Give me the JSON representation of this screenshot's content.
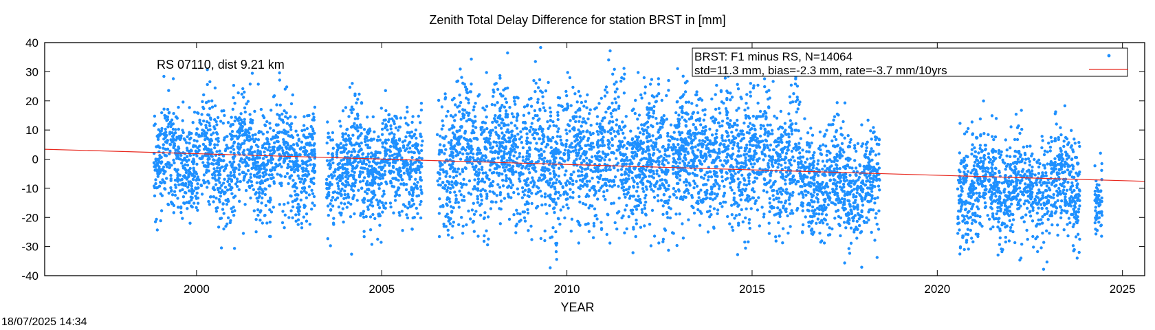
{
  "chart_data": {
    "type": "scatter",
    "title": "Zenith Total Delay Difference for station BRST in [mm]",
    "xlabel": "YEAR",
    "ylabel": "",
    "xlim": [
      1995.9,
      2025.6
    ],
    "ylim": [
      -40,
      40
    ],
    "xticks": [
      2000,
      2005,
      2010,
      2015,
      2020,
      2025
    ],
    "yticks": [
      40,
      30,
      20,
      10,
      0,
      -10,
      -20,
      -30,
      -40
    ],
    "annotation": "RS 07110, dist 9.21 km",
    "grid": false,
    "legend_position": "top-right",
    "series": [
      {
        "name": "BRST: F1 minus RS, N=14064",
        "kind": "points",
        "color": "#1e90ff",
        "n": 14064,
        "segments": [
          {
            "start": 1998.85,
            "end": 2003.2,
            "mean": 0,
            "sd": 9.5
          },
          {
            "start": 2003.5,
            "end": 2006.1,
            "mean": -2.0,
            "sd": 9.0
          },
          {
            "start": 2006.5,
            "end": 2016.3,
            "mean": 1.0,
            "sd": 11.5
          },
          {
            "start": 2016.3,
            "end": 2018.45,
            "mean": -8.0,
            "sd": 9.5
          },
          {
            "start": 2020.55,
            "end": 2023.85,
            "mean": -9.0,
            "sd": 9.0
          },
          {
            "start": 2024.25,
            "end": 2024.45,
            "mean": -19.0,
            "sd": 6.0
          }
        ]
      },
      {
        "name": "std=11.3 mm, bias=-2.3 mm, rate=-3.7 mm/10yrs",
        "kind": "line",
        "color": "#e8281e",
        "points": [
          [
            1995.9,
            3.4
          ],
          [
            2025.6,
            -7.6
          ]
        ]
      }
    ]
  },
  "footer": {
    "timestamp": "18/07/2025 14:34"
  }
}
